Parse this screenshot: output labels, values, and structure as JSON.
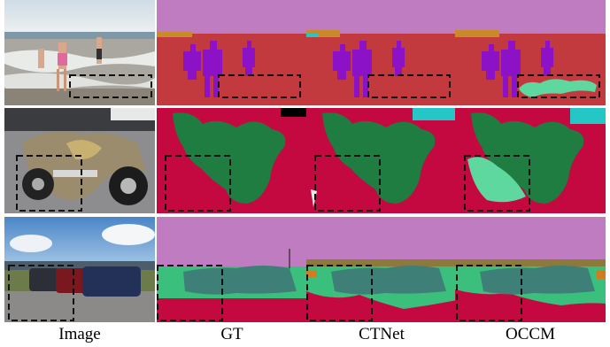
{
  "figure": {
    "columns": [
      "Image",
      "GT",
      "CTNet",
      "OCCM"
    ],
    "rows": [
      "beach-people",
      "motorcycle",
      "parked-cars"
    ]
  },
  "colors": {
    "sky": "#c07cc0",
    "ground_red": "#c23a3d",
    "person_purple": "#8b12c7",
    "motorbike_green": "#1f7d41",
    "crimson": "#c3093f",
    "car_teal": "#3e7f78",
    "grass_green": "#3bbf7c",
    "light_green": "#5fd8a0",
    "cyan": "#25c6c6",
    "orange": "#d07c1f",
    "olive": "#8c7a3a",
    "box_dash": "#111111"
  }
}
